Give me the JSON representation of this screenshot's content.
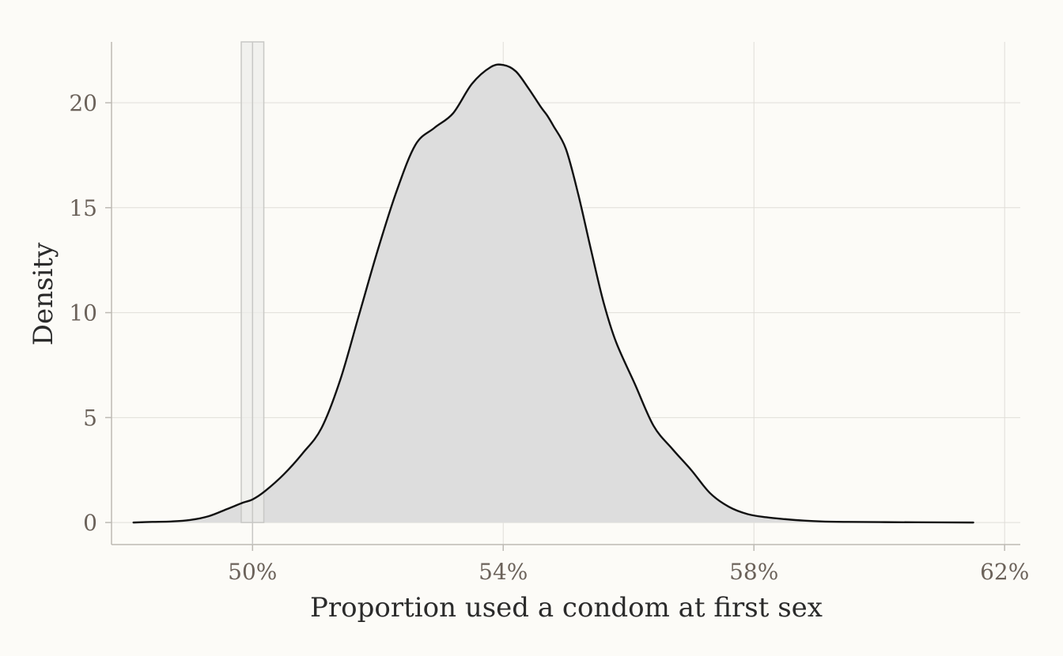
{
  "chart_data": {
    "type": "area",
    "title": "",
    "xlabel": "Proportion used a condom at first sex",
    "ylabel": "Density",
    "xlim": [
      0.4775,
      0.6225
    ],
    "ylim": [
      -1.05,
      22.9
    ],
    "x_ticks": [
      {
        "value": 0.5,
        "label": "50%"
      },
      {
        "value": 0.54,
        "label": "54%"
      },
      {
        "value": 0.58,
        "label": "58%"
      },
      {
        "value": 0.62,
        "label": "62%"
      }
    ],
    "y_ticks": [
      {
        "value": 0,
        "label": "0"
      },
      {
        "value": 5,
        "label": "5"
      },
      {
        "value": 10,
        "label": "10"
      },
      {
        "value": 15,
        "label": "15"
      },
      {
        "value": 20,
        "label": "20"
      }
    ],
    "grid": true,
    "legend": "none",
    "reference_band": {
      "x_min": 0.4982,
      "x_max": 0.5018
    },
    "reference_line": 0.5,
    "series": [
      {
        "x": [
          0.481,
          0.484,
          0.487,
          0.49,
          0.493,
          0.496,
          0.4985,
          0.5,
          0.502,
          0.505,
          0.508,
          0.511,
          0.514,
          0.517,
          0.52,
          0.523,
          0.526,
          0.529,
          0.532,
          0.535,
          0.538,
          0.54,
          0.542,
          0.544,
          0.546,
          0.547,
          0.548,
          0.55,
          0.552,
          0.554,
          0.556,
          0.558,
          0.561,
          0.564,
          0.567,
          0.57,
          0.573,
          0.576,
          0.579,
          0.582,
          0.585,
          0.588,
          0.591,
          0.595,
          0.6,
          0.606,
          0.615
        ],
        "y": [
          0.0,
          0.03,
          0.05,
          0.12,
          0.3,
          0.65,
          0.95,
          1.1,
          1.5,
          2.3,
          3.3,
          4.5,
          6.8,
          9.9,
          13.0,
          15.8,
          18.0,
          18.8,
          19.5,
          20.9,
          21.7,
          21.8,
          21.5,
          20.7,
          19.8,
          19.4,
          18.9,
          17.8,
          15.6,
          13.0,
          10.5,
          8.6,
          6.6,
          4.6,
          3.5,
          2.5,
          1.4,
          0.75,
          0.4,
          0.25,
          0.16,
          0.09,
          0.05,
          0.03,
          0.02,
          0.01,
          0.0
        ]
      }
    ],
    "colors": {
      "background": "#fcfbf7",
      "fill": "#dddddd",
      "line": "#111111",
      "grid": "#e0ded8",
      "axis": "#bdbab4",
      "band_fill": "#ecece9",
      "band_stroke": "#c8c8c5",
      "tick_text": "#6b625a",
      "title_text": "#2b2b2b"
    }
  }
}
